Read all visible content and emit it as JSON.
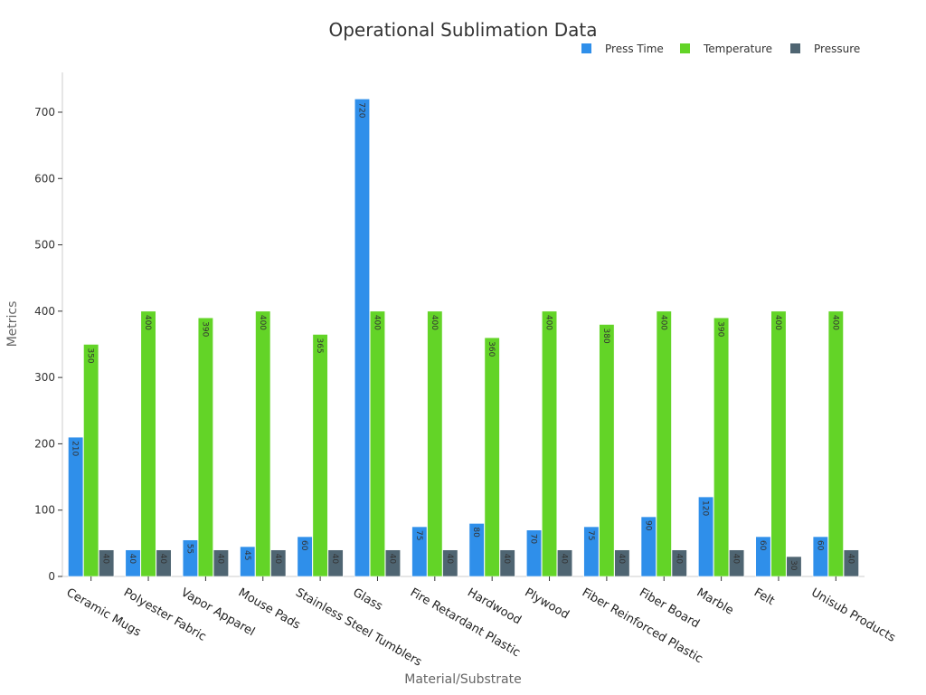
{
  "chart_data": {
    "type": "bar",
    "title": "Operational Sublimation Data",
    "xlabel": "Material/Substrate",
    "ylabel": "Metrics",
    "ylim": [
      0,
      760
    ],
    "yticks": [
      0,
      100,
      200,
      300,
      400,
      500,
      600,
      700
    ],
    "legend_position": "top-right",
    "grid": false,
    "categories": [
      "Ceramic Mugs",
      "Polyester Fabric",
      "Vapor Apparel",
      "Mouse Pads",
      "Stainless Steel Tumblers",
      "Glass",
      "Fire Retardant Plastic",
      "Hardwood",
      "Plywood",
      "Fiber Reinforced Plastic",
      "Fiber Board",
      "Marble",
      "Felt",
      "Unisub Products"
    ],
    "series": [
      {
        "name": "Press Time",
        "color": "#2f8fea",
        "values": [
          210,
          40,
          55,
          45,
          60,
          720,
          75,
          80,
          70,
          75,
          90,
          120,
          60,
          60
        ]
      },
      {
        "name": "Temperature",
        "color": "#63d427",
        "values": [
          350,
          400,
          390,
          400,
          365,
          400,
          400,
          360,
          400,
          380,
          400,
          390,
          400,
          400
        ]
      },
      {
        "name": "Pressure",
        "color": "#4f6572",
        "values": [
          40,
          40,
          40,
          40,
          40,
          40,
          40,
          40,
          40,
          40,
          40,
          40,
          30,
          40
        ]
      }
    ]
  }
}
